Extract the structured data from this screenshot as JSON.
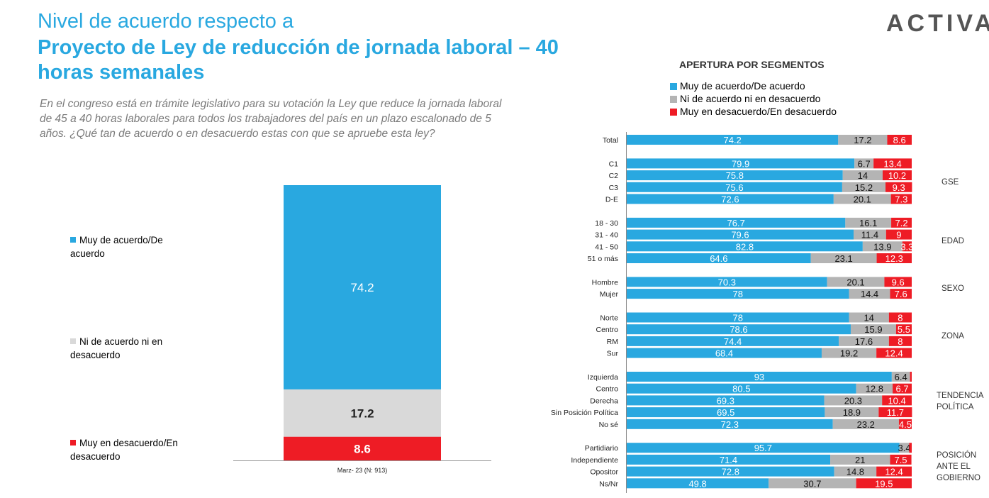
{
  "header": {
    "title_line1": "Nivel de acuerdo respecto a",
    "title_line2": "Proyecto de Ley de reducción de jornada laboral – 40 horas semanales",
    "brand": "ACTIVA",
    "question": "En el congreso está en trámite legislativo para su votación la Ley que reduce la jornada laboral de 45 a 40 horas laborales para todos los trabajadores del país en un plazo escalonado de 5 años. ¿Qué tan de acuerdo o en desacuerdo estas con que se apruebe esta ley?"
  },
  "colors": {
    "agree": "#29a8e0",
    "neutral": "#d9d9d9",
    "disagree": "#ee1c25"
  },
  "chart_data": [
    {
      "type": "bar",
      "stacked": true,
      "categories": [
        "Marz- 23 (N: 913)"
      ],
      "series": [
        {
          "name": "Muy de acuerdo/De acuerdo",
          "values": [
            74.2
          ]
        },
        {
          "name": "Ni de acuerdo ni en desacuerdo",
          "values": [
            17.2
          ]
        },
        {
          "name": "Muy en desacuerdo/En desacuerdo",
          "values": [
            8.6
          ]
        }
      ],
      "ylim": [
        0,
        100
      ]
    },
    {
      "type": "bar",
      "orientation": "horizontal",
      "stacked": true,
      "title": "APERTURA POR SEGMENTOS",
      "legend": [
        "Muy de acuerdo/De acuerdo",
        "Ni de acuerdo ni en desacuerdo",
        "Muy en desacuerdo/En desacuerdo"
      ],
      "xlim": [
        0,
        100
      ],
      "groups": [
        {
          "label": "",
          "rows": [
            {
              "label": "Total",
              "values": [
                74.2,
                17.2,
                8.6
              ]
            }
          ]
        },
        {
          "label": "GSE",
          "rows": [
            {
              "label": "C1",
              "values": [
                79.9,
                6.7,
                13.4
              ]
            },
            {
              "label": "C2",
              "values": [
                75.8,
                14,
                10.2
              ]
            },
            {
              "label": "C3",
              "values": [
                75.6,
                15.2,
                9.3
              ]
            },
            {
              "label": "D-E",
              "values": [
                72.6,
                20.1,
                7.3
              ]
            }
          ]
        },
        {
          "label": "EDAD",
          "rows": [
            {
              "label": "18 - 30",
              "values": [
                76.7,
                16.1,
                7.2
              ]
            },
            {
              "label": "31 - 40",
              "values": [
                79.6,
                11.4,
                9
              ]
            },
            {
              "label": "41 - 50",
              "values": [
                82.8,
                13.9,
                3.3
              ]
            },
            {
              "label": "51 o más",
              "values": [
                64.6,
                23.1,
                12.3
              ]
            }
          ]
        },
        {
          "label": "SEXO",
          "rows": [
            {
              "label": "Hombre",
              "values": [
                70.3,
                20.1,
                9.6
              ]
            },
            {
              "label": "Mujer",
              "values": [
                78,
                14.4,
                7.6
              ]
            }
          ]
        },
        {
          "label": "ZONA",
          "rows": [
            {
              "label": "Norte",
              "values": [
                78,
                14,
                8
              ]
            },
            {
              "label": "Centro",
              "values": [
                78.6,
                15.9,
                5.5
              ]
            },
            {
              "label": "RM",
              "values": [
                74.4,
                17.6,
                8
              ]
            },
            {
              "label": "Sur",
              "values": [
                68.4,
                19.2,
                12.4
              ]
            }
          ]
        },
        {
          "label": "TENDENCIA POLÍTICA",
          "rows": [
            {
              "label": "Izquierda",
              "values": [
                93,
                6.4,
                0.6
              ]
            },
            {
              "label": "Centro",
              "values": [
                80.5,
                12.8,
                6.7
              ]
            },
            {
              "label": "Derecha",
              "values": [
                69.3,
                20.3,
                10.4
              ]
            },
            {
              "label": "Sin Posición Política",
              "values": [
                69.5,
                18.9,
                11.7
              ]
            },
            {
              "label": "No sé",
              "values": [
                72.3,
                23.2,
                4.5
              ]
            }
          ]
        },
        {
          "label": "POSICIÓN ANTE EL GOBIERNO",
          "rows": [
            {
              "label": "Partidiario",
              "values": [
                95.7,
                3.4,
                0.9
              ]
            },
            {
              "label": "Independiente",
              "values": [
                71.4,
                21,
                7.5
              ]
            },
            {
              "label": "Opositor",
              "values": [
                72.8,
                14.8,
                12.4
              ]
            },
            {
              "label": "Ns/Nr",
              "values": [
                49.8,
                30.7,
                19.5
              ]
            }
          ]
        }
      ]
    }
  ]
}
